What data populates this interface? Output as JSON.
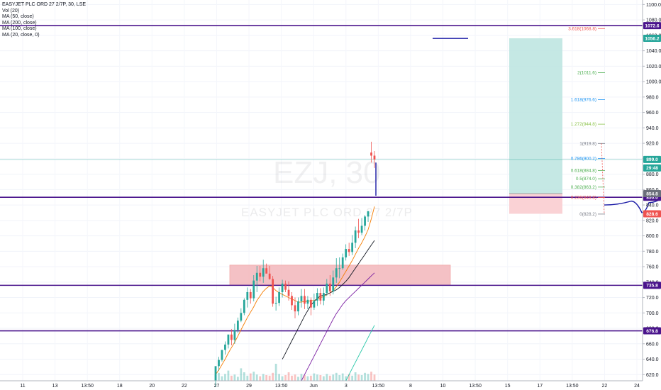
{
  "legend": {
    "title": "EASYJET PLC ORD 27 2/7P, 30, LSE",
    "items": [
      "Vol (20)",
      "MA (50, close)",
      "MA (200, close)",
      "MA (100, close)",
      "MA (20, close, 0)"
    ]
  },
  "watermark": {
    "symbol": "EZJ, 30",
    "name": "EASYJET PLC ORD 27 2/7P"
  },
  "colors": {
    "up": "#26a69a",
    "down": "#ef5350",
    "horizontal_line": "#4a148c",
    "projection": "#1a1aa6",
    "target_zone": "#bfe6e1",
    "stop_zone": "#f9cdd0",
    "demand_zone": "#f3b7bb",
    "ma20": "#f57c00",
    "ma50": "#131722",
    "ma100": "#7b1fa2",
    "ma200": "#26c6a7"
  },
  "chart_data": {
    "type": "candlestick",
    "y_axis": {
      "ticks": [
        620,
        640,
        660,
        680,
        700,
        720,
        740,
        760,
        780,
        800,
        820,
        840,
        860,
        880,
        900,
        920,
        940,
        960,
        980,
        1000,
        1020,
        1040,
        1060,
        1080,
        1100
      ],
      "ylim": [
        612,
        1104
      ]
    },
    "x_axis": {
      "ticks": [
        "11",
        "13",
        "13:50",
        "18",
        "20",
        "22",
        "27",
        "29",
        "13:50",
        "Jun",
        "3",
        "13:50",
        "8",
        "10",
        "13:50",
        "15",
        "17",
        "13:50",
        "22",
        "24"
      ]
    },
    "horizontal_levels": [
      {
        "price": 1072.6,
        "label": "1072.6"
      },
      {
        "price": 850.0,
        "label": "850.0"
      },
      {
        "price": 735.8,
        "label": "735.8"
      },
      {
        "price": 676.8,
        "label": "676.8"
      }
    ],
    "price_tags": [
      {
        "price": 1056.2,
        "label": "1056.2",
        "color": "#26a69a"
      },
      {
        "price": 899.0,
        "label": "899.0",
        "color": "#26a69a"
      },
      {
        "price": 888.0,
        "label": "29:48",
        "color": "#26a69a"
      },
      {
        "price": 854.8,
        "label": "854.8",
        "color": "#6b6f7a"
      },
      {
        "price": 828.6,
        "label": "828.6",
        "color": "#ef5350"
      }
    ],
    "fibonacci": [
      {
        "ratio": "3.618",
        "price": 1068.8,
        "text": "3.618(1068.8)",
        "color": "#ef5350"
      },
      {
        "ratio": "2",
        "price": 1011.6,
        "text": "2(1011.6)",
        "color": "#4caf50"
      },
      {
        "ratio": "1.618",
        "price": 976.6,
        "text": "1.618(976.6)",
        "color": "#2196f3"
      },
      {
        "ratio": "1.272",
        "price": 944.8,
        "text": "1.272(944.8)",
        "color": "#8bc34a"
      },
      {
        "ratio": "1",
        "price": 919.8,
        "text": "1(919.8)",
        "color": "#787b86"
      },
      {
        "ratio": "0.786",
        "price": 900.2,
        "text": "0.786(900.2)",
        "color": "#2196f3"
      },
      {
        "ratio": "0.618",
        "price": 884.8,
        "text": "0.618(884.8)",
        "color": "#4caf50"
      },
      {
        "ratio": "0.5",
        "price": 874.0,
        "text": "0.5(874.0)",
        "color": "#4caf50"
      },
      {
        "ratio": "0.382",
        "price": 863.2,
        "text": "0.382(863.2)",
        "color": "#4caf50"
      },
      {
        "ratio": "0.236",
        "price": 849.8,
        "text": "0.236(849.8)",
        "color": "#ef5350"
      },
      {
        "ratio": "0",
        "price": 828.2,
        "text": "0(828.2)",
        "color": "#787b86"
      }
    ],
    "demand_zone": {
      "top": 762,
      "bottom": 736
    },
    "position": {
      "target": 1056.2,
      "entry": 854.8,
      "stop": 828.6
    },
    "candles": {
      "open": [
        612,
        631,
        639,
        652,
        659,
        672,
        665,
        678,
        690,
        700,
        717,
        727,
        719,
        742,
        752,
        747,
        758,
        751,
        744,
        712,
        713,
        727,
        738,
        730,
        722,
        710,
        702,
        715,
        722,
        712,
        717,
        707,
        716,
        726,
        716,
        726,
        738,
        728,
        746,
        758,
        758,
        772,
        783,
        779,
        791,
        807,
        804,
        813,
        825,
        908,
        904
      ],
      "high": [
        622,
        643,
        651,
        663,
        667,
        679,
        686,
        694,
        706,
        719,
        733,
        731,
        749,
        761,
        761,
        769,
        764,
        761,
        748,
        721,
        733,
        743,
        742,
        741,
        727,
        720,
        720,
        731,
        731,
        722,
        720,
        725,
        732,
        732,
        733,
        744,
        749,
        755,
        771,
        772,
        777,
        789,
        791,
        801,
        812,
        822,
        823,
        827,
        832,
        922,
        910
      ],
      "low": [
        604,
        625,
        637,
        646,
        654,
        658,
        660,
        674,
        688,
        697,
        707,
        712,
        715,
        727,
        741,
        739,
        752,
        743,
        708,
        703,
        709,
        720,
        727,
        716,
        704,
        693,
        697,
        707,
        705,
        705,
        697,
        704,
        709,
        711,
        710,
        722,
        722,
        724,
        739,
        745,
        756,
        768,
        774,
        775,
        784,
        797,
        801,
        807,
        818,
        895,
        888
      ],
      "close": [
        631,
        639,
        652,
        659,
        672,
        665,
        678,
        690,
        700,
        717,
        727,
        719,
        742,
        752,
        747,
        758,
        751,
        744,
        712,
        713,
        727,
        738,
        730,
        722,
        710,
        702,
        715,
        722,
        712,
        717,
        707,
        716,
        726,
        716,
        726,
        738,
        728,
        746,
        758,
        758,
        772,
        783,
        779,
        791,
        807,
        804,
        813,
        825,
        832,
        904,
        899
      ]
    },
    "ma20": [
      620,
      626,
      633,
      640,
      648,
      655,
      662,
      670,
      678,
      686,
      694,
      701,
      708,
      716,
      722,
      728,
      732,
      735,
      733,
      729,
      726,
      724,
      722,
      720,
      718,
      716,
      714,
      714,
      715,
      715,
      716,
      716,
      718,
      720,
      721,
      724,
      726,
      729,
      734,
      740,
      747,
      754,
      761,
      768,
      776,
      784,
      791,
      799,
      808,
      822,
      838
    ],
    "ma50": [
      640,
      648,
      656,
      664,
      672,
      680,
      688,
      696,
      703,
      710,
      715,
      719,
      722,
      723,
      724,
      726,
      728,
      730,
      733,
      737,
      741,
      746,
      752,
      758,
      764,
      770,
      776,
      782,
      788,
      794
    ],
    "ma100": [
      612,
      620,
      628,
      636,
      644,
      652,
      660,
      668,
      676,
      684,
      692,
      699,
      705,
      711,
      716,
      720,
      724,
      728,
      732,
      736,
      740,
      744,
      748,
      752
    ],
    "ma200": [
      612,
      620,
      628,
      636,
      644,
      652,
      660,
      668,
      676,
      684
    ],
    "volume": [
      10,
      14,
      8,
      12,
      18,
      9,
      11,
      7,
      22,
      15,
      9,
      13,
      16,
      11,
      8,
      12,
      10,
      9,
      14,
      30,
      12,
      8,
      10,
      15,
      9,
      11,
      7,
      12,
      10,
      8,
      9,
      13,
      11,
      10,
      8,
      12,
      9,
      11,
      14,
      10,
      13,
      8,
      12,
      9,
      15,
      11,
      10,
      14,
      12,
      16,
      11
    ],
    "projection": [
      [
        852,
        840
      ],
      [
        890,
        845
      ],
      [
        905,
        830
      ],
      [
        915,
        843
      ],
      [
        936,
        851
      ],
      [
        975,
        940
      ],
      [
        1010,
        1040
      ],
      [
        1027,
        1032
      ],
      [
        1048,
        1042
      ],
      [
        1058,
        1059
      ]
    ]
  }
}
